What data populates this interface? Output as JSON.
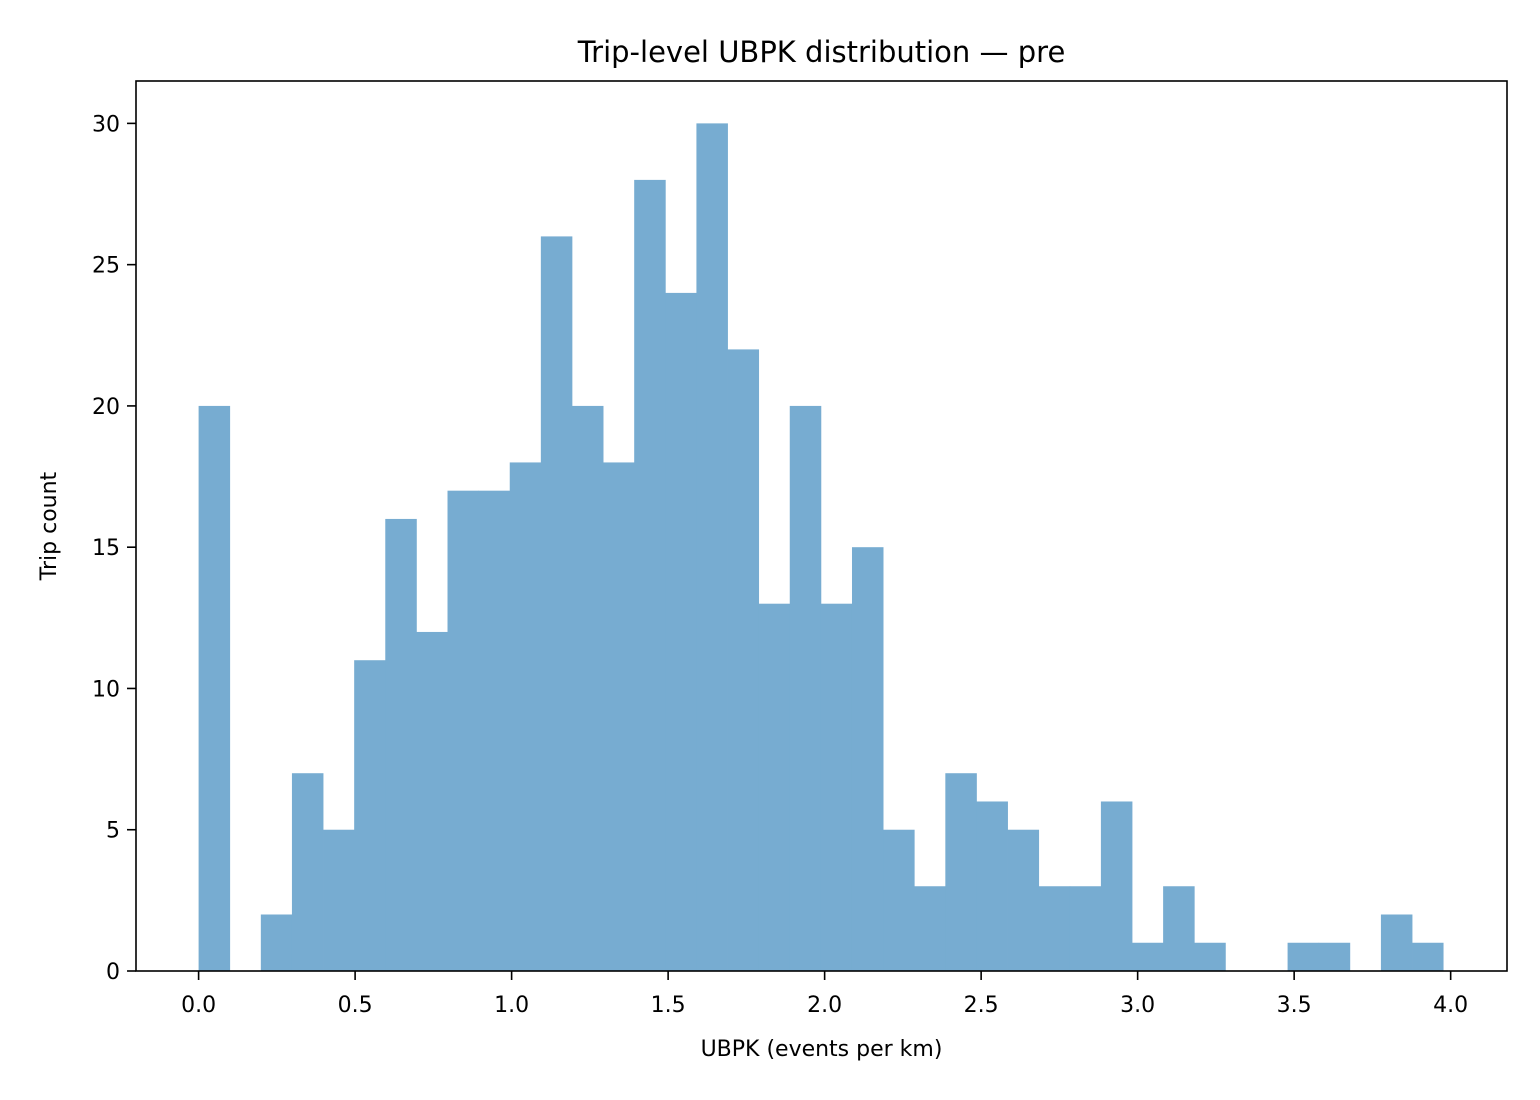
{
  "chart_data": {
    "type": "bar",
    "title": "Trip-level UBPK distribution — pre",
    "xlabel": "UBPK (events per km)",
    "ylabel": "Trip count",
    "xlim": [
      -0.2,
      4.18
    ],
    "ylim": [
      0,
      31.5
    ],
    "xticks": [
      0.0,
      0.5,
      1.0,
      1.5,
      2.0,
      2.5,
      3.0,
      3.5,
      4.0
    ],
    "xtick_labels": [
      "0.0",
      "0.5",
      "1.0",
      "1.5",
      "2.0",
      "2.5",
      "3.0",
      "3.5",
      "4.0"
    ],
    "yticks": [
      0,
      5,
      10,
      15,
      20,
      25,
      30
    ],
    "ytick_labels": [
      "0",
      "5",
      "10",
      "15",
      "20",
      "25",
      "30"
    ],
    "bins": {
      "start": 0.0,
      "width": 0.0994,
      "counts": [
        20,
        0,
        2,
        7,
        5,
        11,
        16,
        12,
        17,
        17,
        18,
        26,
        20,
        18,
        28,
        24,
        30,
        22,
        13,
        20,
        13,
        15,
        5,
        3,
        7,
        6,
        5,
        3,
        3,
        6,
        1,
        3,
        1,
        0,
        0,
        1,
        1,
        0,
        2,
        1
      ]
    },
    "bar_color": "#77acd1",
    "grid": false,
    "legend": "none"
  }
}
